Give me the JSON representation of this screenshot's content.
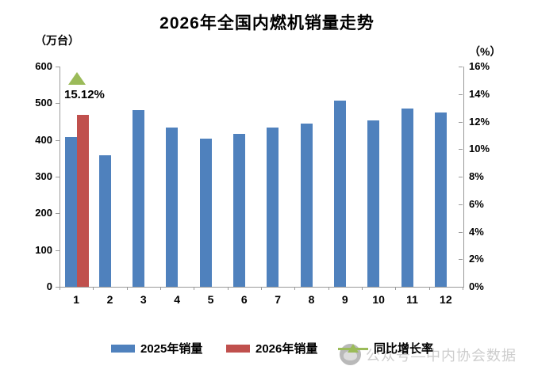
{
  "title": "2026年全国内燃机销量走势",
  "left_axis_unit": "（万台）",
  "right_axis_unit": "（%）",
  "chart_data": {
    "type": "bar",
    "title": "2026年全国内燃机销量走势",
    "categories": [
      "1",
      "2",
      "3",
      "4",
      "5",
      "6",
      "7",
      "8",
      "9",
      "10",
      "11",
      "12"
    ],
    "series": [
      {
        "name": "2025年销量",
        "type": "bar",
        "axis": "left",
        "color": "#4F81BD",
        "values": [
          407,
          358,
          482,
          434,
          404,
          417,
          434,
          445,
          507,
          453,
          486,
          474
        ]
      },
      {
        "name": "2026年销量",
        "type": "bar",
        "axis": "left",
        "color": "#C0504D",
        "values": [
          468,
          null,
          null,
          null,
          null,
          null,
          null,
          null,
          null,
          null,
          null,
          null
        ]
      },
      {
        "name": "同比增长率",
        "type": "triangle-marker",
        "axis": "right",
        "color": "#9BBB59",
        "values": [
          15.12,
          null,
          null,
          null,
          null,
          null,
          null,
          null,
          null,
          null,
          null,
          null
        ]
      }
    ],
    "annotations": [
      {
        "text": "15.12%",
        "category": "1",
        "series": "同比增长率"
      }
    ],
    "left_axis": {
      "label": "（万台）",
      "min": 0,
      "max": 600,
      "step": 100,
      "ticks": [
        "600",
        "500",
        "400",
        "300",
        "200",
        "100",
        "0"
      ]
    },
    "right_axis": {
      "label": "（%）",
      "min": 0,
      "max": 16,
      "step": 2,
      "ticks": [
        "16%",
        "14%",
        "12%",
        "10%",
        "8%",
        "6%",
        "4%",
        "2%",
        "0%"
      ]
    },
    "xlabel": "",
    "ylabel": "",
    "grid": false,
    "legend_position": "bottom"
  },
  "legend": {
    "items": [
      {
        "label": "2025年销量",
        "marker": "rect",
        "color": "#4F81BD"
      },
      {
        "label": "2026年销量",
        "marker": "rect",
        "color": "#C0504D"
      },
      {
        "label": "同比增长率",
        "marker": "line-triangle",
        "color": "#9BBB59"
      }
    ]
  },
  "watermark": {
    "text": "公众号—中内协会数据"
  },
  "colors": {
    "bar_2025": "#4F81BD",
    "bar_2026": "#C0504D",
    "growth_marker": "#9BBB59",
    "axis_line": "#9a9a9a",
    "watermark_text": "#cdcdcd"
  }
}
